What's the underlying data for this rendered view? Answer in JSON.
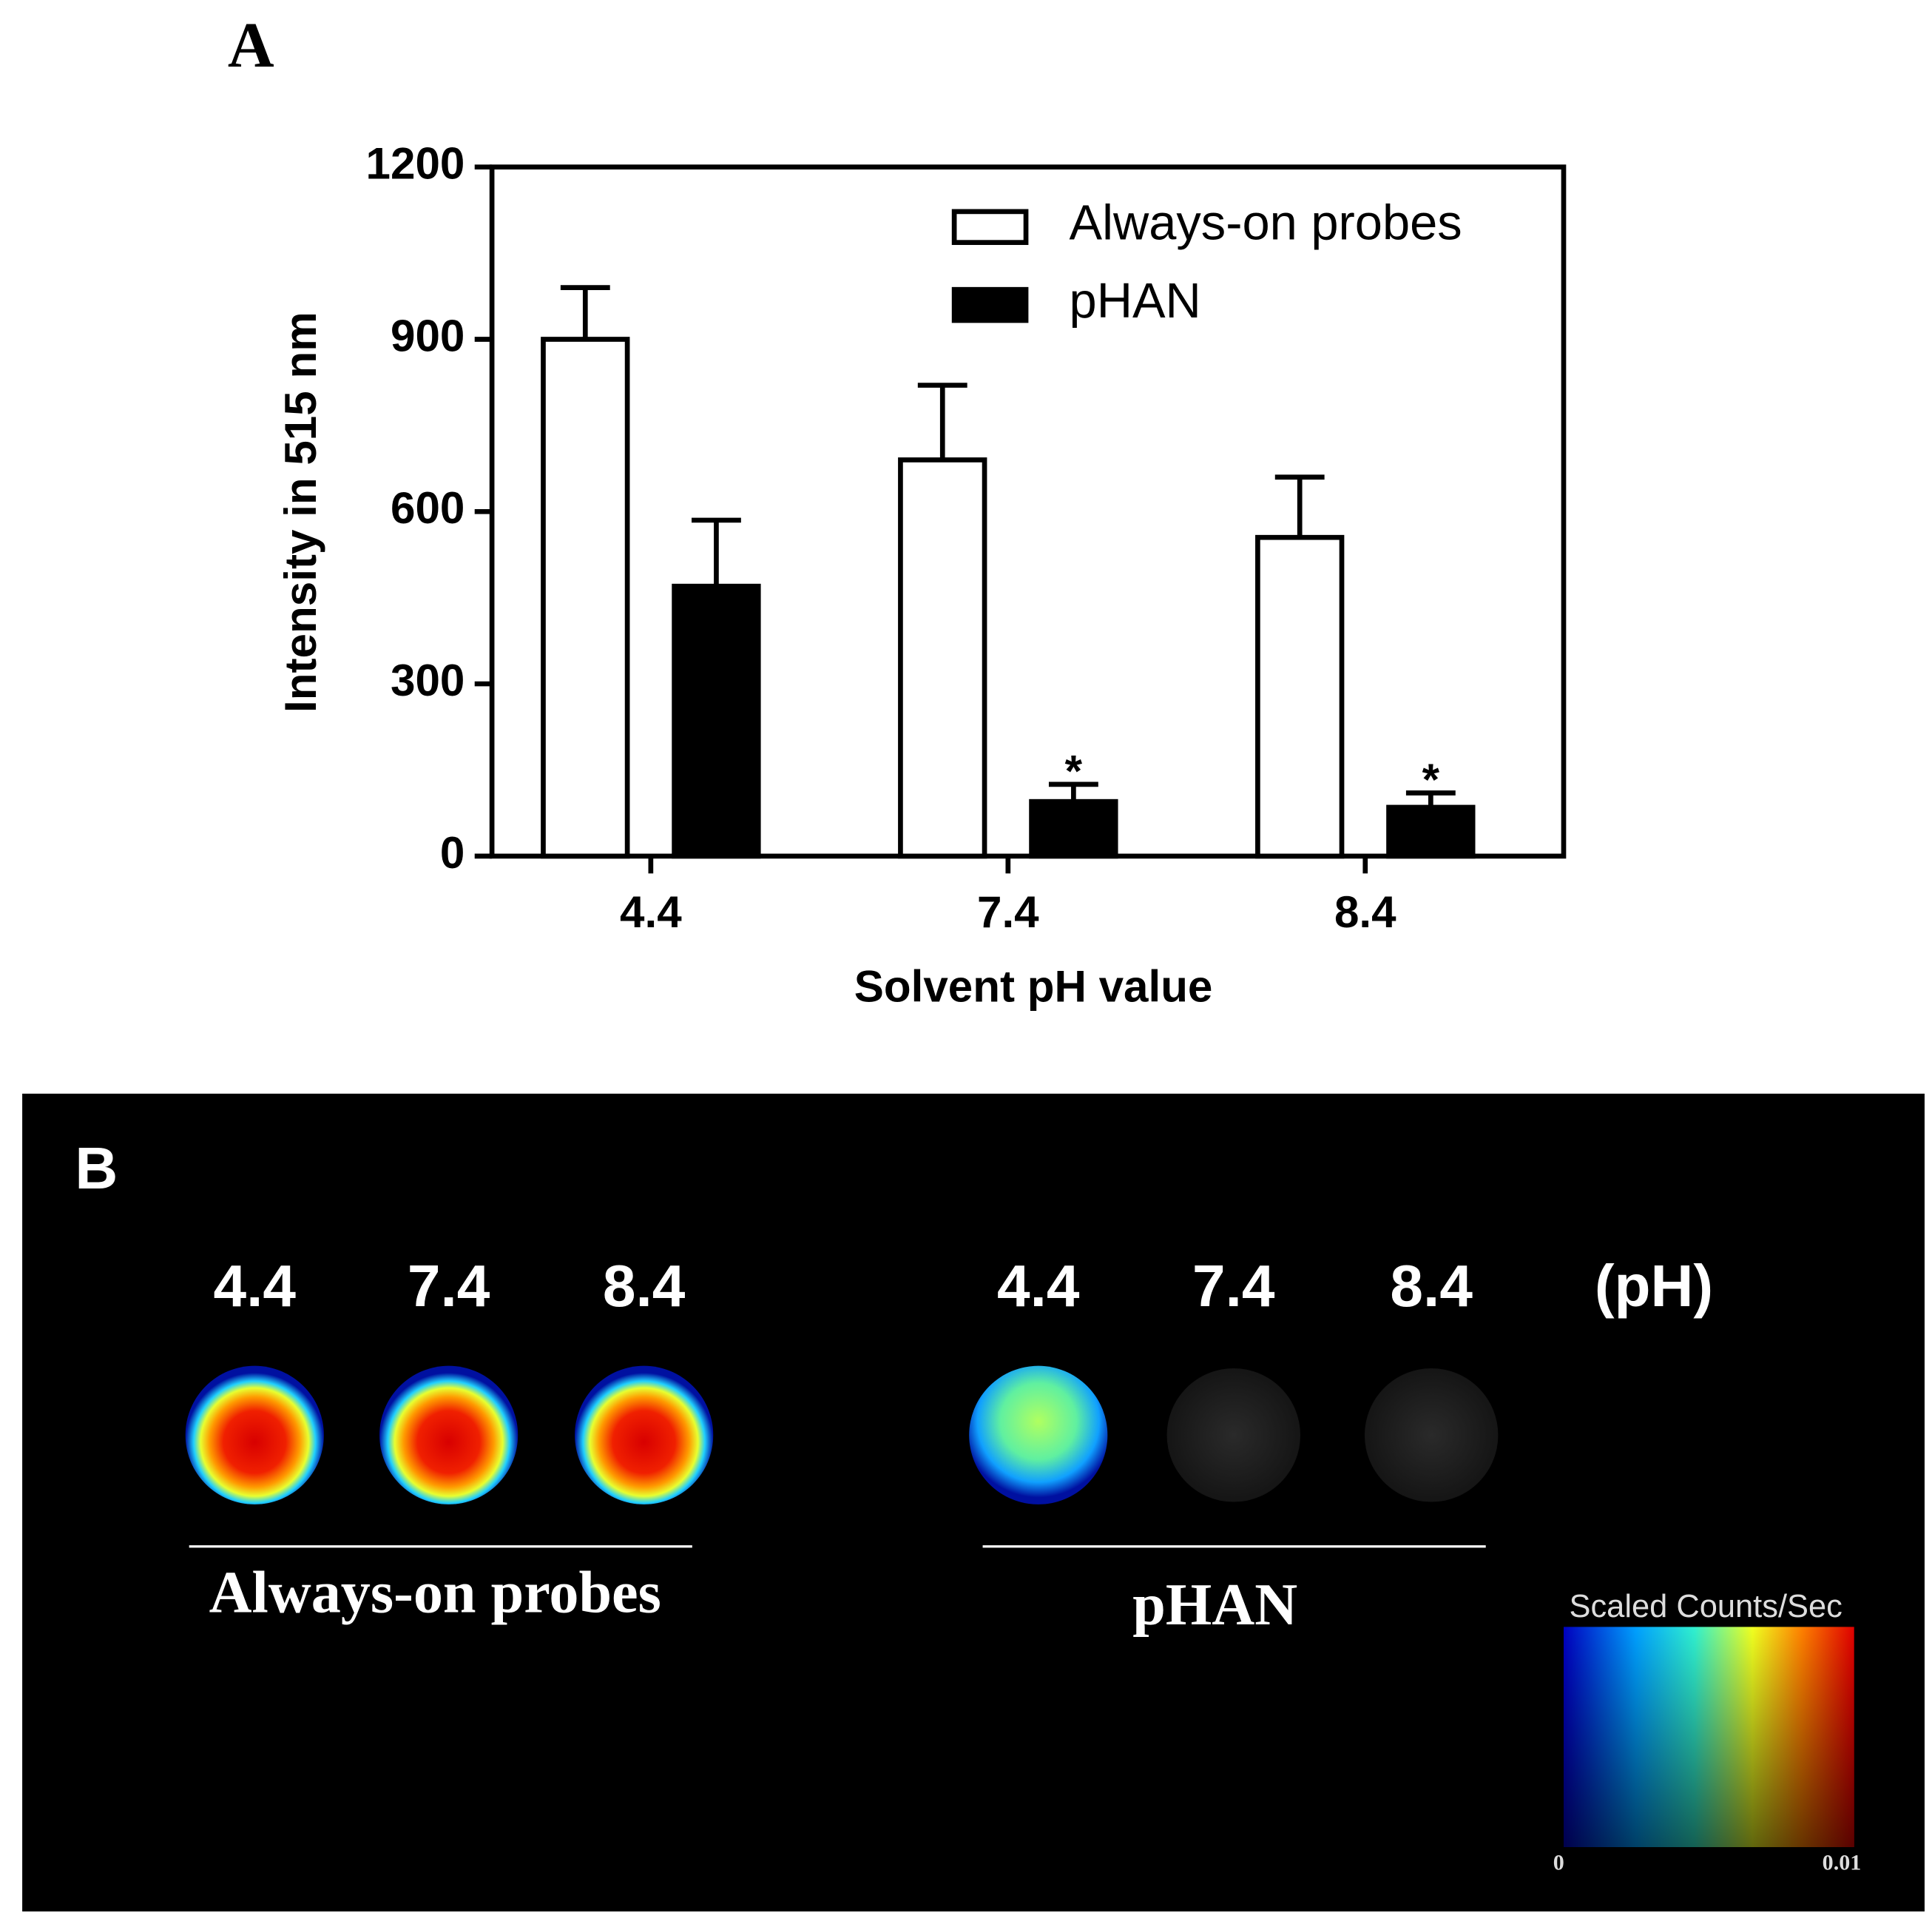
{
  "chart_data": {
    "type": "bar",
    "panel_label": "A",
    "xlabel": "Solvent pH value",
    "ylabel": "Intensity in 515 nm",
    "categories": [
      "4.4",
      "7.4",
      "8.4"
    ],
    "series": [
      {
        "name": "Always-on probes",
        "color": "#ffffff",
        "values": [
          900,
          690,
          555
        ],
        "errors": [
          90,
          130,
          105
        ]
      },
      {
        "name": "pHAN",
        "color": "#000000",
        "values": [
          470,
          95,
          85
        ],
        "errors": [
          115,
          30,
          25
        ]
      }
    ],
    "annotations": [
      {
        "text": "*",
        "category": 1,
        "series": 1
      },
      {
        "text": "*",
        "category": 2,
        "series": 1
      }
    ],
    "ylim": [
      0,
      1200
    ],
    "yticks": [
      0,
      300,
      600,
      900,
      1200
    ],
    "legend": "upper right"
  },
  "panel_b": {
    "panel_label": "B",
    "groups": [
      {
        "name": "Always-on probes",
        "labels": [
          "4.4",
          "7.4",
          "8.4"
        ]
      },
      {
        "name": "pHAN",
        "labels": [
          "4.4",
          "7.4",
          "8.4"
        ]
      }
    ],
    "unit": "(pH)",
    "colorbar": {
      "title": "Scaled Counts/Sec",
      "min": "0",
      "max": "0.01"
    }
  }
}
